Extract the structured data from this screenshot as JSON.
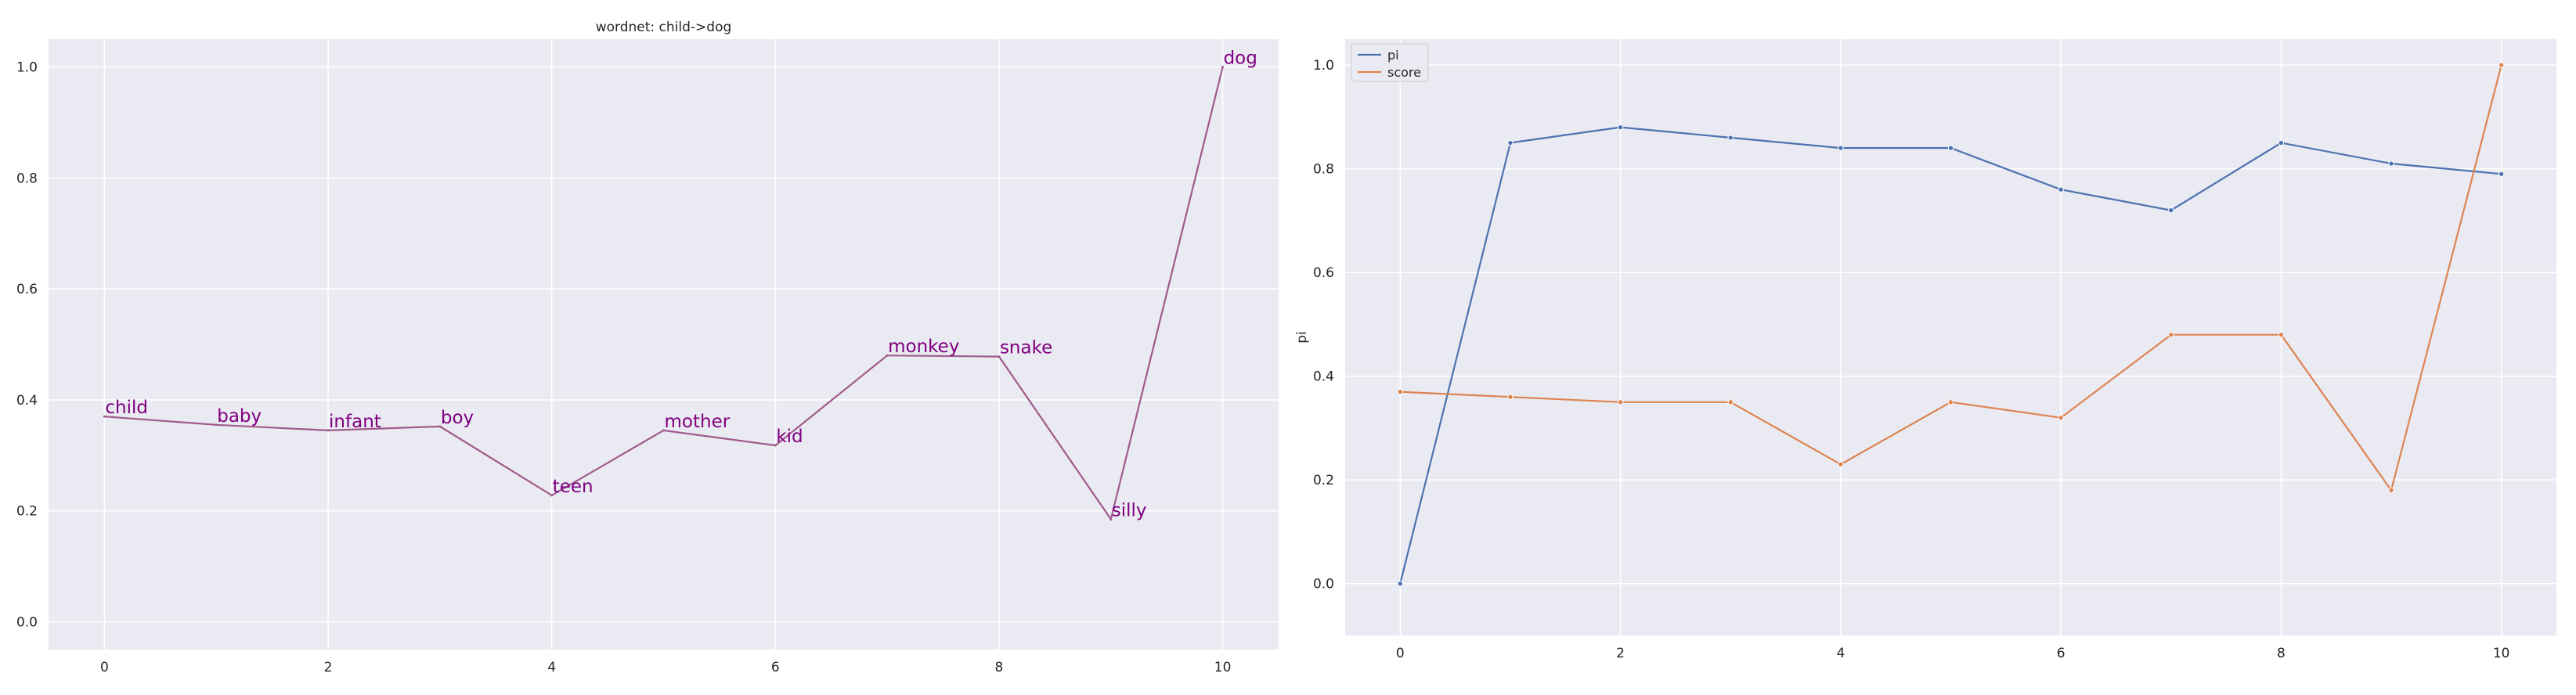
{
  "colors": {
    "axes_bg": "#eaeaf2",
    "grid": "#ffffff",
    "tick_text": "#262626",
    "word_line": "#a05a8c",
    "word_text": "#800080",
    "pi": "#4c72b0",
    "score": "#dd8452"
  },
  "chart_data": [
    {
      "type": "line",
      "title": "wordnet: child->dog",
      "xlabel": "",
      "ylabel": "",
      "xlim": [
        -0.5,
        10.5
      ],
      "ylim": [
        -0.05,
        1.05
      ],
      "xticks": [
        "0",
        "2",
        "4",
        "6",
        "8",
        "10"
      ],
      "yticks": [
        "0.0",
        "0.2",
        "0.4",
        "0.6",
        "0.8",
        "1.0"
      ],
      "grid": true,
      "x": [
        0,
        1,
        2,
        3,
        4,
        5,
        6,
        7,
        8,
        9,
        10
      ],
      "values": [
        0.37,
        0.355,
        0.345,
        0.352,
        0.228,
        0.345,
        0.318,
        0.48,
        0.478,
        0.185,
        1.0
      ],
      "point_labels": [
        "child",
        "baby",
        "infant",
        "boy",
        "teen",
        "mother",
        "kid",
        "monkey",
        "snake",
        "silly",
        "dog"
      ]
    },
    {
      "type": "line",
      "title": "",
      "xlabel": "",
      "ylabel": "pi",
      "xlim": [
        -0.5,
        10.5
      ],
      "ylim": [
        -0.1,
        1.05
      ],
      "xticks": [
        "0",
        "2",
        "4",
        "6",
        "8",
        "10"
      ],
      "yticks": [
        "0.0",
        "0.2",
        "0.4",
        "0.6",
        "0.8",
        "1.0"
      ],
      "grid": true,
      "legend": "top-left",
      "x": [
        0,
        1,
        2,
        3,
        4,
        5,
        6,
        7,
        8,
        9,
        10
      ],
      "series": [
        {
          "name": "pi",
          "values": [
            0.0,
            0.85,
            0.88,
            0.86,
            0.84,
            0.84,
            0.76,
            0.72,
            0.85,
            0.81,
            0.79
          ]
        },
        {
          "name": "score",
          "values": [
            0.37,
            0.36,
            0.35,
            0.35,
            0.23,
            0.35,
            0.32,
            0.48,
            0.48,
            0.18,
            1.0
          ]
        }
      ]
    }
  ]
}
